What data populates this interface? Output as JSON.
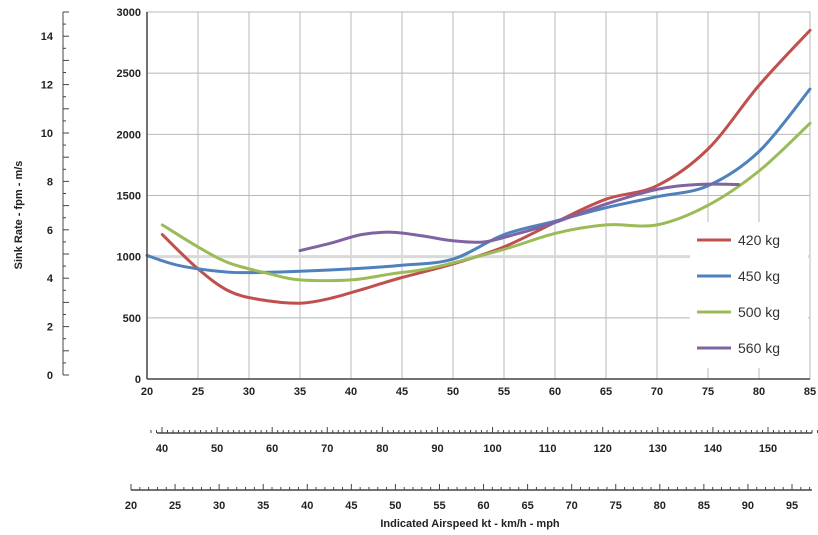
{
  "chart_data": {
    "type": "line",
    "title": "",
    "ylabel": "Sink Rate - fpm - m/s",
    "xlabel": "Indicated Airspeed kt - km/h - mph",
    "grid": true,
    "legend_position": "right",
    "x_kt": {
      "ticks": [
        20,
        25,
        30,
        35,
        40,
        45,
        50,
        55,
        60,
        65,
        70,
        75,
        80,
        85
      ],
      "tick_labels": [
        "20",
        "25",
        "30",
        "35",
        "40",
        "45",
        "50",
        "55",
        "60",
        "65",
        "70",
        "75",
        "80",
        "85"
      ],
      "range": [
        20,
        85
      ]
    },
    "x_kmh": {
      "tick_labels": [
        "40",
        "50",
        "60",
        "70",
        "80",
        "90",
        "100",
        "110",
        "120",
        "130",
        "140",
        "150"
      ],
      "values": [
        40,
        50,
        60,
        70,
        80,
        90,
        100,
        110,
        120,
        130,
        140,
        150
      ]
    },
    "x_mph": {
      "tick_labels": [
        "20",
        "25",
        "30",
        "35",
        "40",
        "45",
        "50",
        "55",
        "60",
        "65",
        "70",
        "75",
        "80",
        "85",
        "90",
        "95"
      ],
      "values": [
        20,
        25,
        30,
        35,
        40,
        45,
        50,
        55,
        60,
        65,
        70,
        75,
        80,
        85,
        90,
        95
      ]
    },
    "y_fpm": {
      "ticks": [
        0,
        500,
        1000,
        1500,
        2000,
        2500,
        3000
      ],
      "tick_labels": [
        "0",
        "500",
        "1000",
        "1500",
        "2000",
        "2500",
        "3000"
      ],
      "range": [
        0,
        3000
      ]
    },
    "y_ms": {
      "ticks": [
        0,
        2,
        4,
        6,
        8,
        10,
        12,
        14
      ],
      "tick_labels": [
        "0",
        "2",
        "4",
        "6",
        "8",
        "10",
        "12",
        "14"
      ]
    },
    "series": [
      {
        "name": "420 kg",
        "color": "#c0504d",
        "points": [
          [
            21.5,
            1180
          ],
          [
            25,
            900
          ],
          [
            28,
            720
          ],
          [
            31,
            650
          ],
          [
            35,
            620
          ],
          [
            38,
            660
          ],
          [
            41,
            730
          ],
          [
            45,
            830
          ],
          [
            50,
            940
          ],
          [
            55,
            1080
          ],
          [
            60,
            1280
          ],
          [
            65,
            1470
          ],
          [
            70,
            1580
          ],
          [
            75,
            1880
          ],
          [
            80,
            2400
          ],
          [
            85,
            2850
          ]
        ]
      },
      {
        "name": "450 kg",
        "color": "#4f81bd",
        "points": [
          [
            20,
            1010
          ],
          [
            23,
            930
          ],
          [
            27,
            880
          ],
          [
            30,
            870
          ],
          [
            35,
            880
          ],
          [
            40,
            900
          ],
          [
            45,
            930
          ],
          [
            50,
            980
          ],
          [
            55,
            1180
          ],
          [
            60,
            1290
          ],
          [
            65,
            1400
          ],
          [
            70,
            1490
          ],
          [
            75,
            1580
          ],
          [
            80,
            1860
          ],
          [
            85,
            2370
          ]
        ]
      },
      {
        "name": "500 kg",
        "color": "#9bbb59",
        "points": [
          [
            21.5,
            1260
          ],
          [
            25,
            1080
          ],
          [
            28,
            950
          ],
          [
            32,
            860
          ],
          [
            35,
            810
          ],
          [
            40,
            810
          ],
          [
            44,
            860
          ],
          [
            48,
            910
          ],
          [
            55,
            1060
          ],
          [
            60,
            1190
          ],
          [
            65,
            1260
          ],
          [
            70,
            1260
          ],
          [
            75,
            1420
          ],
          [
            80,
            1700
          ],
          [
            85,
            2090
          ]
        ]
      },
      {
        "name": "560 kg",
        "color": "#8064a2",
        "points": [
          [
            35,
            1050
          ],
          [
            38,
            1110
          ],
          [
            41,
            1180
          ],
          [
            44,
            1200
          ],
          [
            47,
            1170
          ],
          [
            50,
            1130
          ],
          [
            53,
            1120
          ],
          [
            56,
            1180
          ],
          [
            60,
            1280
          ],
          [
            65,
            1430
          ],
          [
            70,
            1550
          ],
          [
            74,
            1590
          ],
          [
            78,
            1590
          ]
        ]
      }
    ]
  }
}
